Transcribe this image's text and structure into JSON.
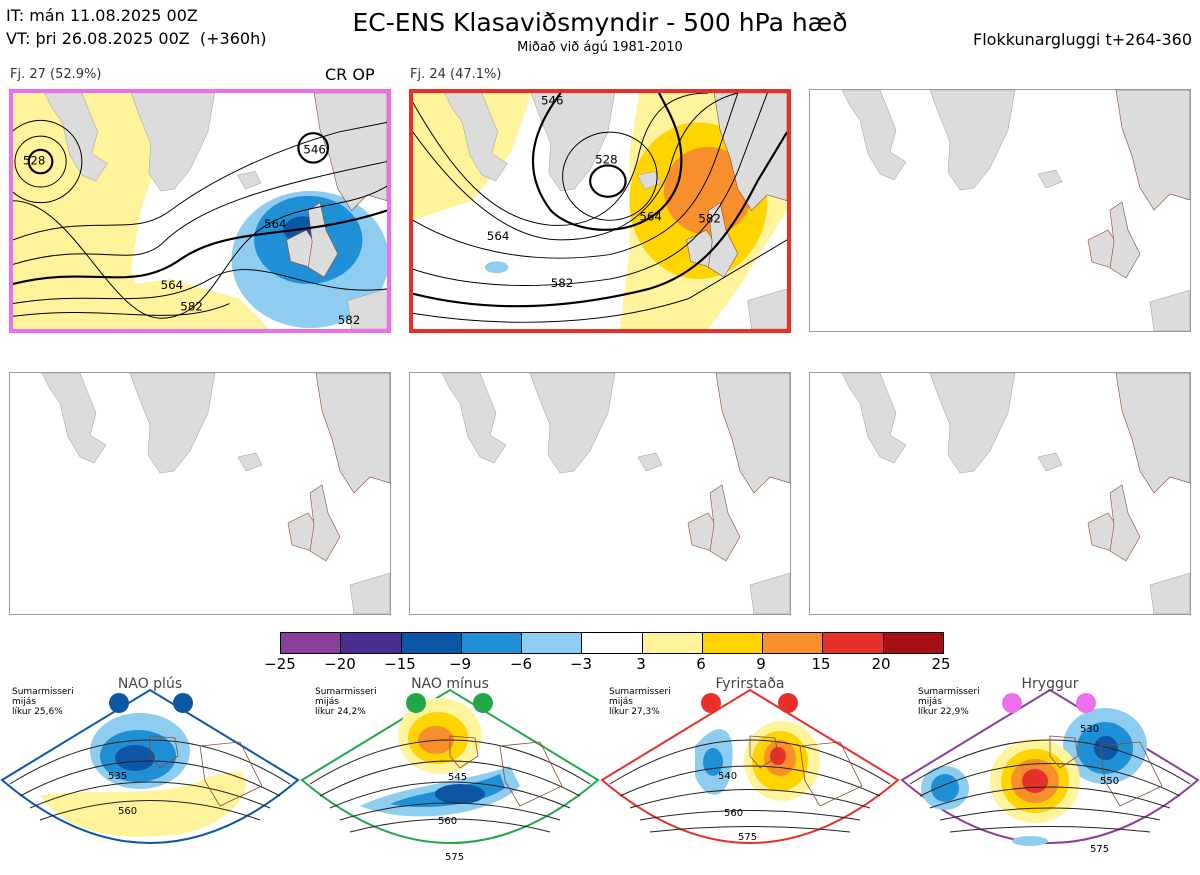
{
  "header": {
    "init_time": "IT: mán 11.08.2025 00Z",
    "valid_time": "VT: þri 26.08.2025 00Z  (+360h)",
    "title": "EC-ENS Klasaviðsmyndir - 500 hPa hæð",
    "subtitle": "Miðað við ágú 1981-2010",
    "window": "Flokkunargluggi t+264-360"
  },
  "clusters": [
    {
      "label": "Fj. 27 (52.9%)",
      "tag": "CR OP",
      "frame_color": "#ee6fee",
      "contour_labels": [
        "546",
        "564",
        "564",
        "582",
        "582",
        "528"
      ]
    },
    {
      "label": "Fj. 24 (47.1%)",
      "tag": "",
      "frame_color": "#e8302a",
      "contour_labels": [
        "546",
        "528",
        "564",
        "564",
        "582",
        "582"
      ]
    }
  ],
  "colorbar": {
    "ticks": [
      "−25",
      "−20",
      "−15",
      "−9",
      "−6",
      "−3",
      "3",
      "6",
      "9",
      "15",
      "20",
      "25"
    ],
    "colors": [
      "#8a3f9b",
      "#4b2f8f",
      "#0b57a6",
      "#1f8fd6",
      "#8ecdf0",
      "#ffffff",
      "#fff39b",
      "#ffd400",
      "#f7902c",
      "#e8302a",
      "#a50f15"
    ]
  },
  "regimes": [
    {
      "name": "NAO plús",
      "note": "Sumarmisseri\nmijás\nlíkur 25,6%",
      "color": "#0b57a6",
      "labels": [
        "535",
        "560"
      ]
    },
    {
      "name": "NAO mínus",
      "note": "Sumarmisseri\nmijás\nlíkur 24,2%",
      "color": "#22a848",
      "labels": [
        "545",
        "560",
        "575"
      ]
    },
    {
      "name": "Fyrirstaða",
      "note": "Sumarmisseri\nmijás\nlíkur 27,3%",
      "color": "#e8302a",
      "labels": [
        "540",
        "560",
        "575"
      ]
    },
    {
      "name": "Hryggur",
      "note": "Sumarmisseri\nmijás\nlíkur 22,9%",
      "color": "#ee6fee",
      "labels": [
        "530",
        "550",
        "575"
      ]
    }
  ]
}
